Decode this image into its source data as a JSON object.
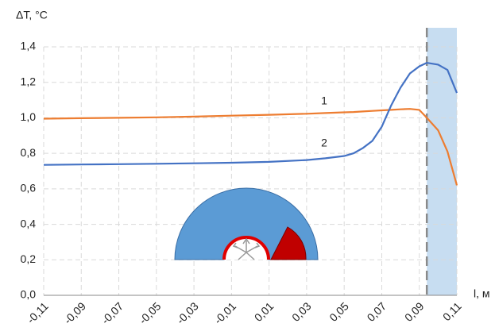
{
  "chart_data": {
    "type": "line",
    "ylabel": "ΔT, °C",
    "xlabel": "l, м",
    "x": [
      -0.11,
      -0.09,
      -0.07,
      -0.05,
      -0.03,
      -0.01,
      0.01,
      0.03,
      0.04,
      0.05,
      0.055,
      0.06,
      0.065,
      0.07,
      0.075,
      0.08,
      0.085,
      0.09,
      0.094,
      0.1,
      0.105,
      0.11
    ],
    "series": [
      {
        "name": "1",
        "color": "#ed7d31",
        "values": [
          0.995,
          0.998,
          1.0,
          1.003,
          1.007,
          1.012,
          1.017,
          1.023,
          1.027,
          1.031,
          1.033,
          1.036,
          1.039,
          1.042,
          1.045,
          1.048,
          1.05,
          1.045,
          1.0,
          0.93,
          0.81,
          0.62
        ]
      },
      {
        "name": "2",
        "color": "#4472c4",
        "values": [
          0.735,
          0.737,
          0.739,
          0.741,
          0.744,
          0.747,
          0.752,
          0.762,
          0.772,
          0.785,
          0.8,
          0.83,
          0.87,
          0.95,
          1.07,
          1.17,
          1.25,
          1.29,
          1.31,
          1.3,
          1.27,
          1.14
        ]
      }
    ],
    "shaded_region": [
      0.094,
      0.11
    ],
    "xlim": [
      -0.11,
      0.11
    ],
    "ylim": [
      0,
      1.4
    ],
    "xticks": [
      {
        "value": -0.11,
        "label": "-0,11"
      },
      {
        "value": -0.09,
        "label": "-0,09"
      },
      {
        "value": -0.07,
        "label": "-0,07"
      },
      {
        "value": -0.05,
        "label": "-0,05"
      },
      {
        "value": -0.03,
        "label": "-0,03"
      },
      {
        "value": -0.01,
        "label": "-0,01"
      },
      {
        "value": 0.01,
        "label": "0,01"
      },
      {
        "value": 0.03,
        "label": "0,03"
      },
      {
        "value": 0.05,
        "label": "0,05"
      },
      {
        "value": 0.07,
        "label": "0,07"
      },
      {
        "value": 0.09,
        "label": "0,09"
      },
      {
        "value": 0.11,
        "label": "0,11"
      }
    ],
    "yticks": [
      {
        "value": 0,
        "label": "0,0"
      },
      {
        "value": 0.2,
        "label": "0,2"
      },
      {
        "value": 0.4,
        "label": "0,4"
      },
      {
        "value": 0.6,
        "label": "0,6"
      },
      {
        "value": 0.8,
        "label": "0,8"
      },
      {
        "value": 1.0,
        "label": "1,0"
      },
      {
        "value": 1.2,
        "label": "1,2"
      },
      {
        "value": 1.4,
        "label": "1,4"
      }
    ],
    "grid": true
  }
}
